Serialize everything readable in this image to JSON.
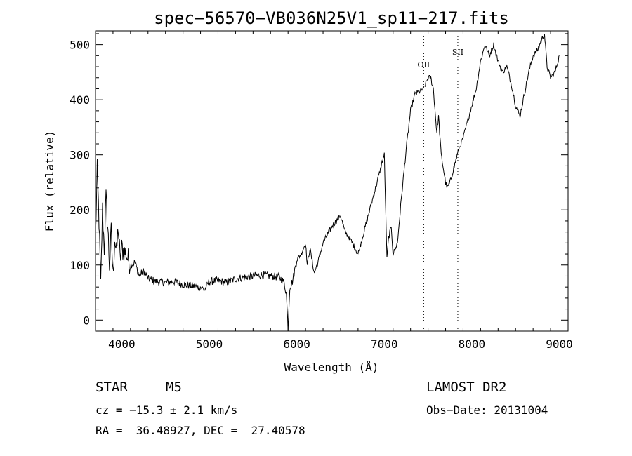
{
  "footer": {
    "object_class": "STAR",
    "subclass": "M5",
    "survey": "LAMOST DR2",
    "cz": "cz = −15.3 ± 2.1 km/s",
    "obs_date": "Obs−Date: 20131004",
    "coords": "RA =  36.48927, DEC =  27.40578"
  },
  "chart_data": {
    "type": "line",
    "title": "spec−56570−VB036N25V1_sp11−217.fits",
    "xlabel": "Wavelength (Å)",
    "ylabel": "Flux (relative)",
    "xlim": [
      3700,
      9100
    ],
    "ylim": [
      -20,
      525
    ],
    "xticks": [
      4000,
      5000,
      6000,
      7000,
      8000,
      9000
    ],
    "yticks": [
      0,
      100,
      200,
      300,
      400,
      500
    ],
    "grid": false,
    "lines": [
      {
        "label": "OII",
        "x": 7450
      },
      {
        "label": "SII",
        "x": 7840
      }
    ],
    "series": [
      {
        "x": [
          3700,
          3720,
          3740,
          3760,
          3780,
          3800,
          3820,
          3840,
          3860,
          3880,
          3900,
          3920,
          3940,
          3960,
          3980,
          4000,
          4050,
          4100,
          4150,
          4200,
          4250,
          4300,
          4400,
          4500,
          4600,
          4700,
          4800,
          4900,
          4950,
          5000,
          5100,
          5200,
          5300,
          5400,
          5500,
          5600,
          5700,
          5800,
          5850,
          5880,
          5900,
          5920,
          5950,
          6000,
          6050,
          6100,
          6120,
          6150,
          6200,
          6250,
          6300,
          6400,
          6500,
          6550,
          6600,
          6700,
          6800,
          6900,
          6950,
          6980,
          7000,
          7030,
          7050,
          7080,
          7100,
          7150,
          7200,
          7250,
          7300,
          7350,
          7400,
          7450,
          7500,
          7530,
          7560,
          7600,
          7620,
          7650,
          7700,
          7720,
          7750,
          7800,
          7850,
          7900,
          7950,
          8000,
          8050,
          8100,
          8150,
          8200,
          8250,
          8300,
          8350,
          8400,
          8450,
          8500,
          8550,
          8600,
          8650,
          8700,
          8750,
          8800,
          8830,
          8860,
          8900,
          8950,
          9000
        ],
        "y": [
          150,
          270,
          180,
          60,
          200,
          130,
          220,
          170,
          100,
          160,
          80,
          150,
          120,
          170,
          110,
          130,
          120,
          100,
          105,
          80,
          90,
          75,
          70,
          68,
          70,
          65,
          62,
          60,
          55,
          70,
          72,
          68,
          75,
          78,
          80,
          82,
          80,
          78,
          70,
          50,
          -15,
          60,
          70,
          110,
          120,
          140,
          100,
          130,
          85,
          110,
          140,
          170,
          190,
          160,
          150,
          120,
          180,
          240,
          270,
          290,
          300,
          110,
          150,
          170,
          120,
          140,
          230,
          310,
          380,
          410,
          415,
          420,
          440,
          440,
          420,
          340,
          370,
          300,
          250,
          240,
          250,
          280,
          310,
          330,
          360,
          390,
          420,
          470,
          500,
          480,
          500,
          470,
          450,
          460,
          430,
          390,
          370,
          410,
          450,
          480,
          490,
          510,
          520,
          460,
          440,
          450,
          480
        ]
      }
    ]
  }
}
